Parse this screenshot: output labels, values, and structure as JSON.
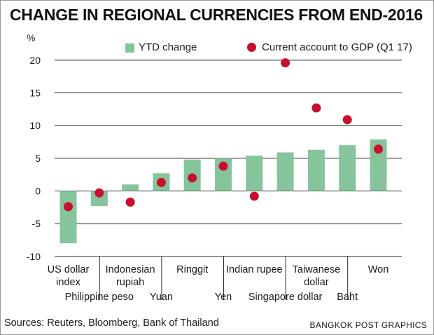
{
  "title": "CHANGE IN REGIONAL CURRENCIES FROM END-2016",
  "unit_label": "%",
  "legend": {
    "bars": "YTD change",
    "dots": "Current account to GDP (Q1 17)"
  },
  "sources": "Sources: Reuters, Bloomberg, Bank of Thailand",
  "credit": "BANGKOK POST GRAPHICS",
  "colors": {
    "bar": "#86c49c",
    "dot": "#c8102e",
    "grid": "#2b2b2b"
  },
  "chart_data": {
    "type": "bar",
    "title": "CHANGE IN REGIONAL CURRENCIES FROM END-2016",
    "ylabel": "%",
    "ylim": [
      -10,
      20
    ],
    "yticks": [
      -10,
      -5,
      0,
      5,
      10,
      15,
      20
    ],
    "grid": true,
    "legend_position": "top",
    "categories": [
      [
        "US dollar",
        "index"
      ],
      [
        "Philippine peso"
      ],
      [
        "Indonesian",
        "rupiah"
      ],
      [
        "Yuan"
      ],
      [
        "Ringgit"
      ],
      [
        "Yen"
      ],
      [
        "Indian rupee"
      ],
      [
        "Singapore dollar"
      ],
      [
        "Taiwanese",
        "dollar"
      ],
      [
        "Baht"
      ],
      [
        "Won"
      ]
    ],
    "label_tier": [
      "top",
      "bottom",
      "top",
      "bottom",
      "top",
      "bottom",
      "top",
      "bottom",
      "top",
      "bottom",
      "top"
    ],
    "series": [
      {
        "name": "YTD change",
        "type": "bar",
        "values": [
          -8.0,
          -2.3,
          1.0,
          2.7,
          4.8,
          5.0,
          5.4,
          5.9,
          6.3,
          7.0,
          7.9
        ]
      },
      {
        "name": "Current account to GDP (Q1 17)",
        "type": "scatter",
        "values": [
          -2.4,
          -0.3,
          -1.7,
          1.3,
          2.0,
          3.8,
          -0.8,
          19.6,
          12.7,
          10.9,
          6.4
        ]
      }
    ]
  }
}
